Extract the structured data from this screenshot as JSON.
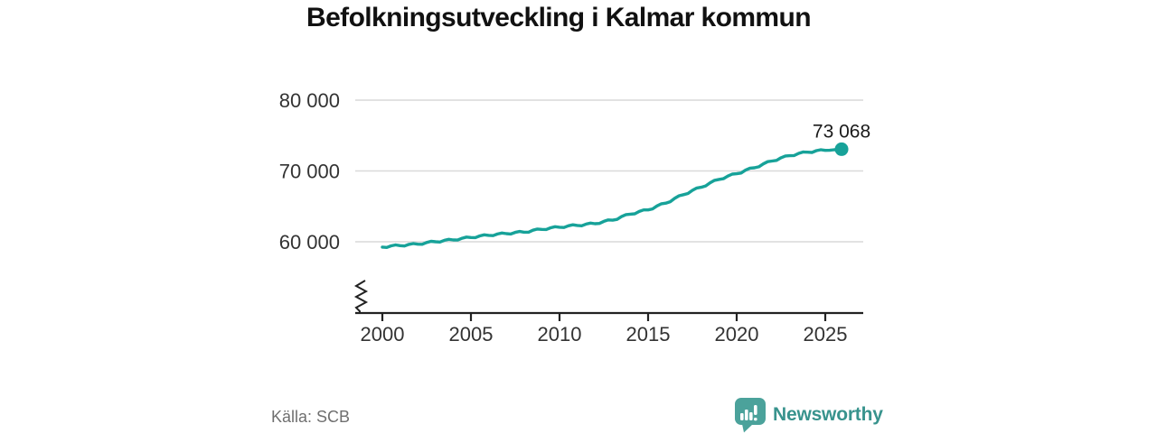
{
  "title": "Befolkningsutveckling i Kalmar kommun",
  "source": "Källa: SCB",
  "branding": {
    "name": "Newsworthy",
    "icon": "newsworthy-logo-icon"
  },
  "colors": {
    "line": "#17a299",
    "grid": "#d9d9d9",
    "axis": "#222222",
    "tick_text": "#333333",
    "title_text": "#111111",
    "source_text": "#6f6f6f",
    "end_label_text": "#1a1a1a",
    "logo_icon": "#4ba29b",
    "logo_text": "#38938d"
  },
  "chart_data": {
    "type": "line",
    "title": "Befolkningsutveckling i Kalmar kommun",
    "xlabel": "",
    "ylabel": "",
    "grid": "horizontal",
    "axis_break": true,
    "xlim": [
      1998.5,
      2027.1
    ],
    "ylim": [
      58500,
      81000
    ],
    "yticks": {
      "values": [
        60000,
        70000,
        80000
      ],
      "labels": [
        "60 000",
        "70 000",
        "80 000"
      ]
    },
    "xticks": {
      "values": [
        2000,
        2005,
        2010,
        2015,
        2020,
        2025
      ],
      "labels": [
        "2000",
        "2005",
        "2010",
        "2015",
        "2020",
        "2025"
      ]
    },
    "end_label": {
      "text": "73 068",
      "x": 2025.92,
      "value": 73068
    },
    "series": [
      {
        "name": "Befolkning, Kalmar kommun",
        "color": "#17a299",
        "points": [
          [
            2000,
            59250
          ],
          [
            2000.25,
            59200
          ],
          [
            2000.5,
            59430
          ],
          [
            2000.75,
            59550
          ],
          [
            2001,
            59450
          ],
          [
            2001.25,
            59400
          ],
          [
            2001.5,
            59630
          ],
          [
            2001.75,
            59750
          ],
          [
            2002,
            59650
          ],
          [
            2002.25,
            59640
          ],
          [
            2002.5,
            59900
          ],
          [
            2002.75,
            60060
          ],
          [
            2003,
            60000
          ],
          [
            2003.25,
            59960
          ],
          [
            2003.5,
            60200
          ],
          [
            2003.75,
            60340
          ],
          [
            2004,
            60250
          ],
          [
            2004.25,
            60240
          ],
          [
            2004.5,
            60500
          ],
          [
            2004.75,
            60660
          ],
          [
            2005,
            60600
          ],
          [
            2005.25,
            60580
          ],
          [
            2005.5,
            60830
          ],
          [
            2005.75,
            60980
          ],
          [
            2006,
            60900
          ],
          [
            2006.25,
            60860
          ],
          [
            2006.5,
            61100
          ],
          [
            2006.75,
            61240
          ],
          [
            2007,
            61150
          ],
          [
            2007.25,
            61100
          ],
          [
            2007.5,
            61330
          ],
          [
            2007.75,
            61450
          ],
          [
            2008,
            61350
          ],
          [
            2008.25,
            61350
          ],
          [
            2008.5,
            61630
          ],
          [
            2008.75,
            61800
          ],
          [
            2009,
            61750
          ],
          [
            2009.25,
            61730
          ],
          [
            2009.5,
            61980
          ],
          [
            2009.75,
            62130
          ],
          [
            2010,
            62050
          ],
          [
            2010.25,
            62010
          ],
          [
            2010.5,
            62260
          ],
          [
            2010.75,
            62390
          ],
          [
            2011,
            62300
          ],
          [
            2011.25,
            62260
          ],
          [
            2011.5,
            62500
          ],
          [
            2011.75,
            62640
          ],
          [
            2012,
            62550
          ],
          [
            2012.25,
            62580
          ],
          [
            2012.5,
            62880
          ],
          [
            2012.75,
            63080
          ],
          [
            2013,
            63050
          ],
          [
            2013.25,
            63160
          ],
          [
            2013.5,
            63560
          ],
          [
            2013.75,
            63840
          ],
          [
            2014,
            63900
          ],
          [
            2014.25,
            63950
          ],
          [
            2014.5,
            64280
          ],
          [
            2014.75,
            64500
          ],
          [
            2015,
            64500
          ],
          [
            2015.25,
            64640
          ],
          [
            2015.5,
            65060
          ],
          [
            2015.75,
            65360
          ],
          [
            2016,
            65450
          ],
          [
            2016.25,
            65650
          ],
          [
            2016.5,
            66130
          ],
          [
            2016.75,
            66500
          ],
          [
            2017,
            66650
          ],
          [
            2017.25,
            66810
          ],
          [
            2017.5,
            67260
          ],
          [
            2017.75,
            67590
          ],
          [
            2018,
            67700
          ],
          [
            2018.25,
            67880
          ],
          [
            2018.5,
            68330
          ],
          [
            2018.75,
            68680
          ],
          [
            2019,
            68800
          ],
          [
            2019.25,
            68900
          ],
          [
            2019.5,
            69280
          ],
          [
            2019.75,
            69550
          ],
          [
            2020,
            69600
          ],
          [
            2020.25,
            69710
          ],
          [
            2020.5,
            70110
          ],
          [
            2020.75,
            70390
          ],
          [
            2021,
            70450
          ],
          [
            2021.25,
            70590
          ],
          [
            2021.5,
            71000
          ],
          [
            2021.75,
            71310
          ],
          [
            2022,
            71400
          ],
          [
            2022.25,
            71490
          ],
          [
            2022.5,
            71860
          ],
          [
            2022.75,
            72110
          ],
          [
            2023,
            72150
          ],
          [
            2023.25,
            72180
          ],
          [
            2023.5,
            72480
          ],
          [
            2023.75,
            72680
          ],
          [
            2024,
            72650
          ],
          [
            2024.25,
            72610
          ],
          [
            2024.5,
            72860
          ],
          [
            2024.75,
            72990
          ],
          [
            2025,
            72900
          ],
          [
            2025.25,
            72920
          ],
          [
            2025.5,
            72990
          ],
          [
            2025.75,
            73010
          ],
          [
            2025.92,
            73068
          ]
        ]
      }
    ]
  }
}
